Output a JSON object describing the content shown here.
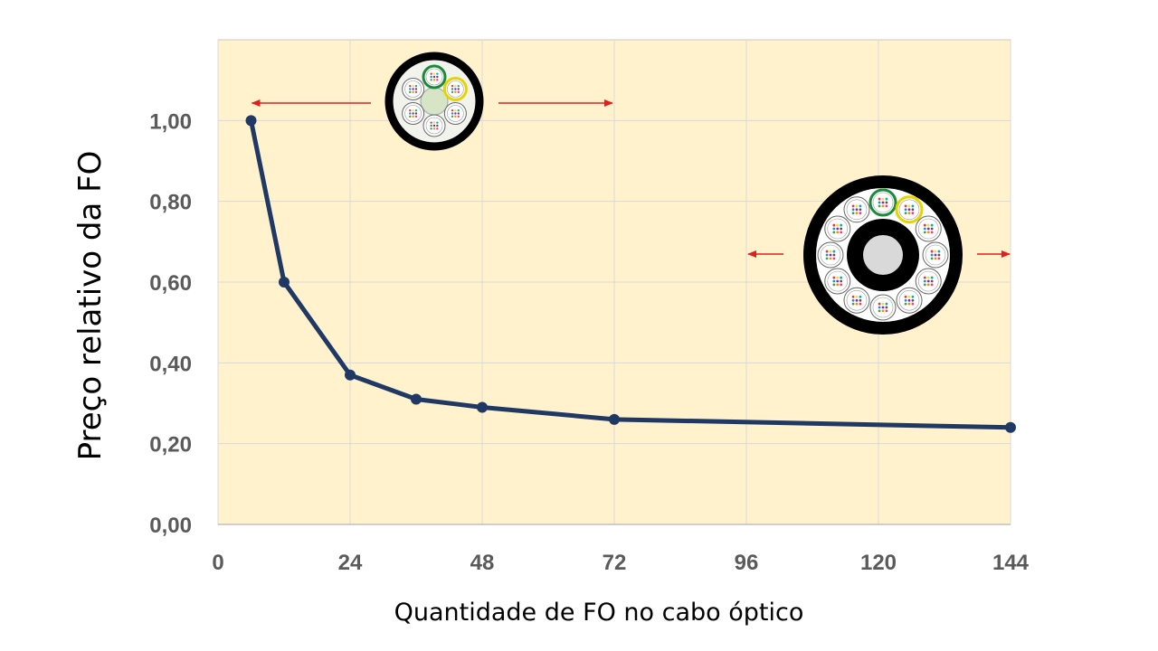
{
  "chart_data": {
    "type": "line",
    "xlabel": "Quantidade de FO no cabo óptico",
    "ylabel": "Preço relativo da FO",
    "x_ticks": [
      "0",
      "24",
      "48",
      "72",
      "96",
      "120",
      "144"
    ],
    "y_ticks": [
      "0,00",
      "0,20",
      "0,40",
      "0,60",
      "0,80",
      "1,00"
    ],
    "xlim": [
      0,
      144
    ],
    "ylim": [
      0,
      1.2
    ],
    "grid": true,
    "series": [
      {
        "points": [
          {
            "x": 6,
            "y": 1.0
          },
          {
            "x": 12,
            "y": 0.6
          },
          {
            "x": 24,
            "y": 0.37
          },
          {
            "x": 36,
            "y": 0.31
          },
          {
            "x": 48,
            "y": 0.29
          },
          {
            "x": 72,
            "y": 0.26
          },
          {
            "x": 144,
            "y": 0.24
          }
        ]
      }
    ],
    "colors": {
      "plot_background": "#fff2cc",
      "line": "#1f3864",
      "gridline": "#d9d9d9",
      "arrow": "#e02020",
      "axis_text": "#5a5a5a"
    },
    "annotations": [
      {
        "icon": "small-fiber-cable-cross-section-icon",
        "range_x": [
          6,
          72
        ]
      },
      {
        "icon": "large-fiber-cable-cross-section-icon",
        "range_x": [
          96,
          144
        ]
      }
    ]
  }
}
